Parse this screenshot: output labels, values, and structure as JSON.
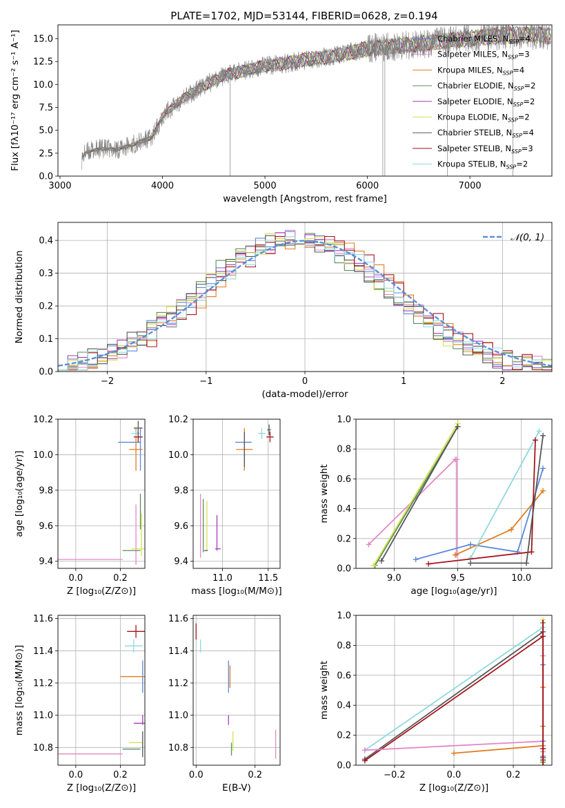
{
  "figure": {
    "title": "PLATE=1702, MJD=53144, FIBERID=0628, z=0.194"
  },
  "colors": {
    "Chabrier MILES": "#5b86db",
    "Salpeter MILES": "#e387c6",
    "Kroupa MILES": "#e07b1f",
    "Chabrier ELODIE": "#5c8c5a",
    "Salpeter ELODIE": "#a03cb8",
    "Kroupa ELODIE": "#d3e34a",
    "Chabrier STELIB": "#555555",
    "Salpeter STELIB": "#a4131a",
    "Kroupa STELIB": "#8fd8df",
    "data": "#808080",
    "normal": "#5b8fd8",
    "grid": "#b0b0b0"
  },
  "chart_data": [
    {
      "id": "spectrum",
      "type": "line",
      "title": "PLATE=1702, MJD=53144, FIBERID=0628, z=0.194",
      "xlabel": "wavelength [Angstrom, rest frame]",
      "ylabel": "Flux [fλ10⁻¹⁷ erg cm⁻² s⁻¹ A⁻¹]",
      "xlim": [
        2980,
        7800
      ],
      "ylim": [
        0,
        16.5
      ],
      "xticks": [
        3000,
        4000,
        5000,
        6000,
        7000
      ],
      "yticks": [
        0.0,
        2.5,
        5.0,
        7.5,
        10.0,
        12.5,
        15.0
      ],
      "grid": false,
      "legend_position": "right",
      "continuum_x": [
        3210,
        3250,
        3400,
        3550,
        3700,
        3900,
        4000,
        4200,
        4400,
        4600,
        4800,
        5000,
        5200,
        5400,
        5600,
        5800,
        6000,
        6200,
        6400,
        6600,
        6800,
        7000,
        7200,
        7400,
        7600,
        7800
      ],
      "continuum_y": [
        1.8,
        2.6,
        3.0,
        2.9,
        3.4,
        4.2,
        6.6,
        8.5,
        9.8,
        11.0,
        11.5,
        12.0,
        12.3,
        12.7,
        13.0,
        13.4,
        13.9,
        14.1,
        14.3,
        14.5,
        14.8,
        15.0,
        15.2,
        15.4,
        15.4,
        15.3
      ],
      "series": [
        {
          "name": "Chabrier MILES",
          "n_ssp": "4"
        },
        {
          "name": "Salpeter MILES",
          "n_ssp": "3"
        },
        {
          "name": "Kroupa MILES",
          "n_ssp": "4"
        },
        {
          "name": "Chabrier ELODIE",
          "n_ssp": "2"
        },
        {
          "name": "Salpeter ELODIE",
          "n_ssp": "2"
        },
        {
          "name": "Kroupa ELODIE",
          "n_ssp": "2"
        },
        {
          "name": "Chabrier STELIB",
          "n_ssp": "4"
        },
        {
          "name": "Salpeter STELIB",
          "n_ssp": "3"
        },
        {
          "name": "Kroupa STELIB",
          "n_ssp": "2"
        }
      ]
    },
    {
      "id": "residuals",
      "type": "step",
      "xlabel": "(data-model)/error",
      "ylabel": "Normed distribution",
      "xlim": [
        -2.5,
        2.5
      ],
      "ylim": [
        0,
        0.455
      ],
      "xticks": [
        -2,
        -1,
        0,
        1,
        2
      ],
      "yticks": [
        0.0,
        0.1,
        0.2,
        0.3,
        0.4
      ],
      "grid": true,
      "legend_position": "top-right",
      "normal_label": "𝒩(0, 1)",
      "bin_width": 0.1,
      "bin_start": -2.5
    },
    {
      "id": "age_vs_z",
      "type": "scatter",
      "xlabel": "Z [log₁₀(Z/Z⊙)]",
      "ylabel": "age  [log₁₀(age/yr)]",
      "xlim": [
        -0.08,
        0.31
      ],
      "ylim": [
        9.36,
        10.2
      ],
      "xticks": [
        0.0,
        0.2
      ],
      "yticks": [
        9.4,
        9.6,
        9.8,
        10.0,
        10.2
      ],
      "grid": true,
      "points": [
        {
          "series": "Salpeter MILES",
          "x": 0.06,
          "y": 9.41,
          "xerr": 0.15,
          "yerr": 0.0
        },
        {
          "series": "Salpeter MILES",
          "x": 0.27,
          "y": 9.55,
          "xerr": 0.0,
          "yerr": 0.17
        },
        {
          "series": "Chabrier ELODIE",
          "x": 0.25,
          "y": 9.46,
          "xerr": 0.04,
          "yerr": 0.0
        },
        {
          "series": "Chabrier ELODIE",
          "x": 0.29,
          "y": 9.68,
          "xerr": 0.0,
          "yerr": 0.1
        },
        {
          "series": "Kroupa ELODIE",
          "x": 0.28,
          "y": 9.47,
          "xerr": 0.03,
          "yerr": 0.0
        },
        {
          "series": "Kroupa ELODIE",
          "x": 0.295,
          "y": 9.55,
          "xerr": 0.0,
          "yerr": 0.12
        },
        {
          "series": "Chabrier MILES",
          "x": 0.24,
          "y": 10.07,
          "xerr": 0.05,
          "yerr": 0.0
        },
        {
          "series": "Chabrier MILES",
          "x": 0.29,
          "y": 10.03,
          "xerr": 0.0,
          "yerr": 0.12
        },
        {
          "series": "Kroupa MILES",
          "x": 0.27,
          "y": 10.03,
          "xerr": 0.03,
          "yerr": 0.12
        },
        {
          "series": "Kroupa STELIB",
          "x": 0.27,
          "y": 10.12,
          "xerr": 0.02,
          "yerr": 0.02
        },
        {
          "series": "Salpeter STELIB",
          "x": 0.28,
          "y": 10.1,
          "xerr": 0.02,
          "yerr": 0.03
        },
        {
          "series": "Chabrier STELIB",
          "x": 0.28,
          "y": 10.15,
          "xerr": 0.02,
          "yerr": 0.04
        }
      ]
    },
    {
      "id": "age_vs_mass",
      "type": "scatter",
      "xlabel": "mass [log₁₀(M/M⊙)]",
      "ylabel": "",
      "xlim": [
        10.68,
        11.63
      ],
      "ylim": [
        9.36,
        10.2
      ],
      "xticks": [
        11.0,
        11.5
      ],
      "yticks": [
        9.4,
        9.6,
        9.8,
        10.0,
        10.2
      ],
      "grid": true,
      "points": [
        {
          "series": "Salpeter MILES",
          "x": 10.76,
          "y": 9.6,
          "xerr": 0.0,
          "yerr": 0.18
        },
        {
          "series": "Chabrier ELODIE",
          "x": 10.79,
          "y": 9.6,
          "xerr": 0.0,
          "yerr": 0.15
        },
        {
          "series": "Kroupa ELODIE",
          "x": 10.83,
          "y": 9.6,
          "xerr": 0.0,
          "yerr": 0.14
        },
        {
          "series": "Chabrier STELIB",
          "x": 10.82,
          "y": 9.46,
          "xerr": 0.02,
          "yerr": 0.0
        },
        {
          "series": "Salpeter ELODIE",
          "x": 10.95,
          "y": 9.47,
          "xerr": 0.03,
          "yerr": 0.0
        },
        {
          "series": "Salpeter ELODIE",
          "x": 10.94,
          "y": 9.56,
          "xerr": 0.0,
          "yerr": 0.1
        },
        {
          "series": "Chabrier MILES",
          "x": 11.23,
          "y": 10.07,
          "xerr": 0.09,
          "yerr": 0.0
        },
        {
          "series": "Kroupa MILES",
          "x": 11.24,
          "y": 10.03,
          "xerr": 0.09,
          "yerr": 0.12
        },
        {
          "series": "Chabrier STELIB",
          "x": 11.24,
          "y": 10.03,
          "xerr": 0.0,
          "yerr": 0.1
        },
        {
          "series": "Kroupa STELIB",
          "x": 11.43,
          "y": 10.12,
          "xerr": 0.04,
          "yerr": 0.03
        },
        {
          "series": "Salpeter STELIB",
          "x": 11.52,
          "y": 10.1,
          "xerr": 0.04,
          "yerr": 0.03
        },
        {
          "series": "Chabrier STELIB",
          "x": 11.51,
          "y": 10.14,
          "xerr": 0.02,
          "yerr": 0.03
        }
      ]
    },
    {
      "id": "weight_vs_age",
      "type": "line",
      "xlabel": "age  [log₁₀(age/yr)]",
      "ylabel": "mass weight",
      "xlim": [
        8.7,
        10.24
      ],
      "ylim": [
        0,
        1.0
      ],
      "xticks": [
        9.0,
        9.5,
        10.0
      ],
      "yticks": [
        0.0,
        0.2,
        0.4,
        0.6,
        0.8,
        1.0
      ],
      "grid": true,
      "series": [
        {
          "name": "Salpeter MILES",
          "x": [
            8.8,
            9.48,
            9.49,
            9.49
          ],
          "y": [
            0.16,
            0.73,
            0.73,
            0.09
          ]
        },
        {
          "name": "Chabrier ELODIE",
          "x": [
            8.85,
            9.5
          ],
          "y": [
            0.02,
            0.95
          ]
        },
        {
          "name": "Kroupa ELODIE",
          "x": [
            8.84,
            9.5
          ],
          "y": [
            0.02,
            0.97
          ]
        },
        {
          "name": "Chabrier STELIB",
          "x": [
            8.9,
            9.5
          ],
          "y": [
            0.05,
            0.95
          ]
        },
        {
          "name": "Chabrier MILES",
          "x": [
            9.17,
            9.6,
            9.97,
            10.17
          ],
          "y": [
            0.06,
            0.16,
            0.11,
            0.67
          ]
        },
        {
          "name": "Kroupa MILES",
          "x": [
            9.48,
            9.92,
            10.17
          ],
          "y": [
            0.09,
            0.26,
            0.52
          ]
        },
        {
          "name": "Kroupa STELIB",
          "x": [
            9.6,
            10.14
          ],
          "y": [
            0.07,
            0.92
          ]
        },
        {
          "name": "Salpeter STELIB",
          "x": [
            9.27,
            10.08,
            10.11
          ],
          "y": [
            0.03,
            0.11,
            0.86
          ]
        },
        {
          "name": "Chabrier STELIB",
          "x": [
            9.6,
            10.04,
            10.17
          ],
          "y": [
            0.035,
            0.035,
            0.89
          ]
        }
      ]
    },
    {
      "id": "mass_vs_z",
      "type": "scatter",
      "xlabel": "Z [log₁₀(Z/Z⊙)]",
      "ylabel": "mass [log₁₀(M/M⊙)]",
      "xlim": [
        -0.08,
        0.31
      ],
      "ylim": [
        10.69,
        11.62
      ],
      "xticks": [
        0.0,
        0.2
      ],
      "yticks": [
        10.8,
        11.0,
        11.2,
        11.4,
        11.6
      ],
      "grid": true,
      "points": [
        {
          "series": "Salpeter STELIB",
          "x": 0.27,
          "y": 11.52,
          "xerr": 0.04,
          "yerr": 0.04
        },
        {
          "series": "Kroupa STELIB",
          "x": 0.26,
          "y": 11.43,
          "xerr": 0.04,
          "yerr": 0.04
        },
        {
          "series": "Chabrier MILES",
          "x": 0.3,
          "y": 11.24,
          "xerr": 0.0,
          "yerr": 0.1
        },
        {
          "series": "Kroupa MILES",
          "x": 0.26,
          "y": 11.24,
          "xerr": 0.06,
          "yerr": 0.0
        },
        {
          "series": "Salpeter ELODIE",
          "x": 0.29,
          "y": 10.95,
          "xerr": 0.03,
          "yerr": 0.0
        },
        {
          "series": "Salpeter ELODIE",
          "x": 0.3,
          "y": 10.97,
          "xerr": 0.0,
          "yerr": 0.03
        },
        {
          "series": "Kroupa ELODIE",
          "x": 0.27,
          "y": 10.83,
          "xerr": 0.03,
          "yerr": 0.0
        },
        {
          "series": "Chabrier ELODIE",
          "x": 0.25,
          "y": 10.79,
          "xerr": 0.04,
          "yerr": 0.0
        },
        {
          "series": "Chabrier STELIB",
          "x": 0.3,
          "y": 10.82,
          "xerr": 0.0,
          "yerr": 0.08
        },
        {
          "series": "Salpeter MILES",
          "x": 0.06,
          "y": 10.76,
          "xerr": 0.15,
          "yerr": 0.0
        }
      ]
    },
    {
      "id": "mass_vs_ebv",
      "type": "scatter",
      "xlabel": "E(B-V)",
      "ylabel": "",
      "xlim": [
        -0.01,
        0.285
      ],
      "ylim": [
        10.69,
        11.62
      ],
      "xticks": [
        0.0,
        0.2
      ],
      "yticks": [
        10.8,
        11.0,
        11.2,
        11.4,
        11.6
      ],
      "grid": true,
      "points": [
        {
          "series": "Salpeter STELIB",
          "x": 0.0,
          "y": 11.52,
          "xerr": 0.0,
          "yerr": 0.05
        },
        {
          "series": "Kroupa STELIB",
          "x": 0.015,
          "y": 11.43,
          "xerr": 0.0,
          "yerr": 0.04
        },
        {
          "series": "Chabrier MILES",
          "x": 0.11,
          "y": 11.24,
          "xerr": 0.0,
          "yerr": 0.1
        },
        {
          "series": "Kroupa MILES",
          "x": 0.115,
          "y": 11.24,
          "xerr": 0.0,
          "yerr": 0.07
        },
        {
          "series": "Salpeter ELODIE",
          "x": 0.11,
          "y": 10.97,
          "xerr": 0.0,
          "yerr": 0.03
        },
        {
          "series": "Kroupa ELODIE",
          "x": 0.125,
          "y": 10.84,
          "xerr": 0.0,
          "yerr": 0.06
        },
        {
          "series": "Chabrier ELODIE",
          "x": 0.12,
          "y": 10.79,
          "xerr": 0.0,
          "yerr": 0.04
        },
        {
          "series": "Salpeter MILES",
          "x": 0.27,
          "y": 10.82,
          "xerr": 0.0,
          "yerr": 0.09
        }
      ]
    },
    {
      "id": "weight_vs_z",
      "type": "line",
      "xlabel": "Z [log₁₀(Z/Z⊙)]",
      "ylabel": "mass weight",
      "xlim": [
        -0.33,
        0.33
      ],
      "ylim": [
        0,
        1.0
      ],
      "xticks": [
        -0.2,
        0.0,
        0.2
      ],
      "yticks": [
        0.0,
        0.2,
        0.4,
        0.6,
        0.8,
        1.0
      ],
      "grid": true,
      "series": [
        {
          "name": "Kroupa STELIB",
          "x": [
            -0.3,
            0.3
          ],
          "y": [
            0.1,
            0.92
          ]
        },
        {
          "name": "Chabrier STELIB",
          "x": [
            -0.3,
            0.3
          ],
          "y": [
            0.04,
            0.89
          ]
        },
        {
          "name": "Salpeter STELIB",
          "x": [
            -0.3,
            0.3
          ],
          "y": [
            0.03,
            0.86
          ]
        },
        {
          "name": "Salpeter MILES",
          "x": [
            -0.3,
            0.3
          ],
          "y": [
            0.1,
            0.16
          ]
        },
        {
          "name": "Kroupa MILES",
          "x": [
            0.0,
            0.3
          ],
          "y": [
            0.08,
            0.13
          ]
        }
      ],
      "edge_points": [
        {
          "series": "Kroupa ELODIE",
          "y": [
            0.97,
            0.03
          ]
        },
        {
          "series": "Chabrier ELODIE",
          "y": [
            0.95,
            0.02
          ]
        },
        {
          "series": "Chabrier MILES",
          "y": [
            0.67,
            0.16,
            0.11,
            0.06
          ]
        },
        {
          "series": "Kroupa MILES",
          "y": [
            0.52,
            0.26,
            0.09
          ]
        },
        {
          "series": "Salpeter MILES",
          "y": [
            0.73,
            0.09
          ]
        },
        {
          "series": "Salpeter STELIB",
          "y": [
            0.11
          ]
        },
        {
          "series": "Chabrier STELIB",
          "y": [
            0.05,
            0.035
          ]
        }
      ]
    }
  ]
}
